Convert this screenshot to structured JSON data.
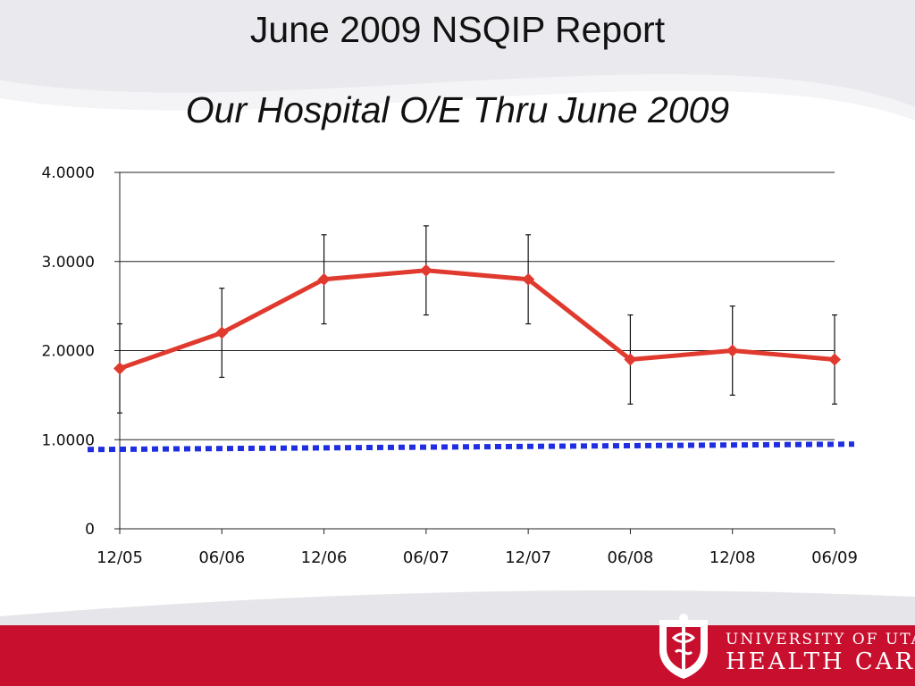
{
  "slide": {
    "title": "June 2009 NSQIP Report",
    "subtitle": "Our Hospital O/E Thru June 2009",
    "footer_color": "#c8102e",
    "logo": {
      "line1": "UNIVERSITY OF UTAH",
      "line2": "HEALTH CARE"
    }
  },
  "chart_data": {
    "type": "line",
    "categories": [
      "12/05",
      "06/06",
      "12/06",
      "06/07",
      "12/07",
      "06/08",
      "12/08",
      "06/09"
    ],
    "series": [
      {
        "values": [
          1.8,
          2.2,
          2.8,
          2.9,
          2.8,
          1.9,
          2.0,
          1.9
        ],
        "error_low": [
          1.3,
          1.7,
          2.3,
          2.4,
          2.3,
          1.4,
          1.5,
          1.4
        ],
        "error_high": [
          2.3,
          2.7,
          3.3,
          3.4,
          3.3,
          2.4,
          2.5,
          2.4
        ],
        "color": "#e03a2f",
        "marker": "diamond"
      }
    ],
    "reference_line": {
      "value": 0.93,
      "style": "dotted",
      "color": "#1f2ee0"
    },
    "y_ticks": [
      "0",
      "1.0000",
      "2.0000",
      "3.0000",
      "4.0000"
    ],
    "ylim": [
      0,
      4
    ],
    "grid": true
  }
}
